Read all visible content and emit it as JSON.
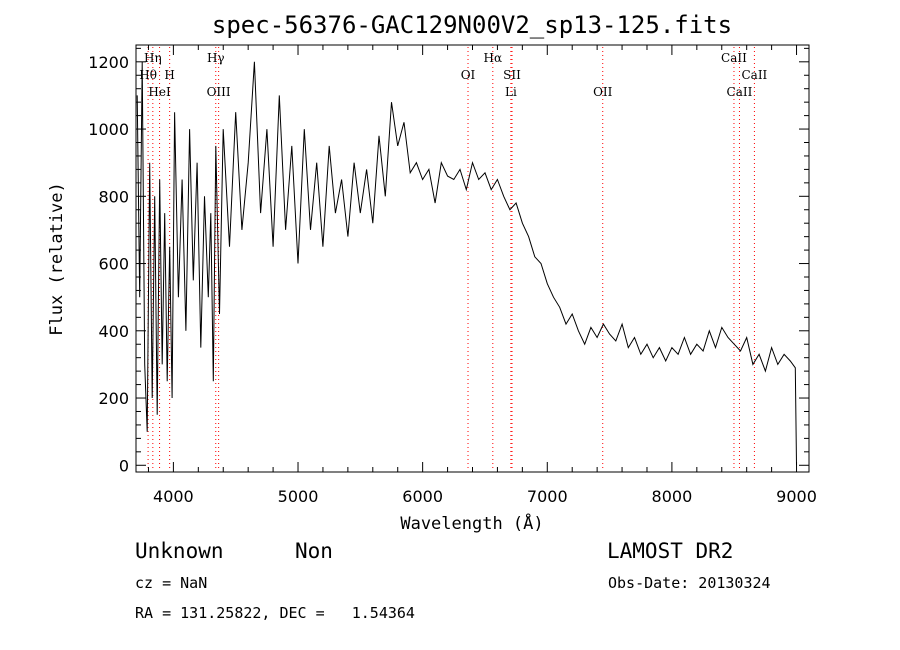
{
  "chart_data": {
    "type": "line",
    "title": "spec-56376-GAC129N00V2_sp13-125.fits",
    "xlabel": "Wavelength (Å)",
    "ylabel": "Flux (relative)",
    "xlim": [
      3700,
      9100
    ],
    "ylim": [
      -20,
      1250
    ],
    "xticks": [
      4000,
      5000,
      6000,
      7000,
      8000,
      9000
    ],
    "yticks": [
      0,
      200,
      400,
      600,
      800,
      1000,
      1200
    ],
    "grid": false,
    "line_color": "#000000",
    "marker_color": "#ff0000",
    "series": [
      {
        "x": [
          3710,
          3730,
          3750,
          3770,
          3790,
          3810,
          3830,
          3850,
          3870,
          3890,
          3910,
          3930,
          3950,
          3970,
          3990,
          4010,
          4040,
          4070,
          4100,
          4130,
          4160,
          4190,
          4220,
          4250,
          4280,
          4300,
          4320,
          4340,
          4370,
          4400,
          4450,
          4500,
          4550,
          4600,
          4650,
          4700,
          4750,
          4800,
          4850,
          4900,
          4950,
          5000,
          5050,
          5100,
          5150,
          5200,
          5250,
          5300,
          5350,
          5400,
          5450,
          5500,
          5550,
          5600,
          5650,
          5700,
          5750,
          5800,
          5850,
          5900,
          5950,
          6000,
          6050,
          6100,
          6150,
          6200,
          6250,
          6300,
          6350,
          6400,
          6450,
          6500,
          6550,
          6600,
          6650,
          6700,
          6750,
          6800,
          6850,
          6900,
          6950,
          7000,
          7050,
          7100,
          7150,
          7200,
          7250,
          7300,
          7350,
          7400,
          7450,
          7500,
          7550,
          7600,
          7650,
          7700,
          7750,
          7800,
          7850,
          7900,
          7950,
          8000,
          8050,
          8100,
          8150,
          8200,
          8250,
          8300,
          8350,
          8400,
          8450,
          8500,
          8550,
          8600,
          8650,
          8700,
          8750,
          8800,
          8850,
          8900,
          8950,
          8990,
          9000
        ],
        "y": [
          1100,
          500,
          1200,
          300,
          100,
          900,
          200,
          800,
          150,
          850,
          300,
          750,
          250,
          650,
          200,
          1050,
          500,
          850,
          400,
          1000,
          550,
          900,
          350,
          800,
          500,
          750,
          250,
          950,
          450,
          1000,
          650,
          1050,
          700,
          900,
          1200,
          750,
          1000,
          650,
          1100,
          700,
          950,
          600,
          1000,
          700,
          900,
          650,
          950,
          750,
          850,
          680,
          900,
          750,
          880,
          720,
          980,
          800,
          1080,
          950,
          1020,
          870,
          900,
          850,
          880,
          780,
          900,
          860,
          850,
          880,
          820,
          900,
          850,
          870,
          820,
          850,
          800,
          760,
          780,
          720,
          680,
          620,
          600,
          540,
          500,
          470,
          420,
          450,
          400,
          360,
          410,
          380,
          420,
          390,
          370,
          420,
          350,
          380,
          330,
          360,
          320,
          350,
          310,
          350,
          330,
          380,
          330,
          360,
          340,
          400,
          350,
          410,
          380,
          360,
          340,
          380,
          300,
          330,
          280,
          350,
          300,
          330,
          310,
          290,
          0
        ]
      }
    ],
    "reference_lines": [
      {
        "x": 3797,
        "label": "Hθ"
      },
      {
        "x": 3835,
        "label": "Hη"
      },
      {
        "x": 3889,
        "label": "HeI"
      },
      {
        "x": 3970,
        "label": "H"
      },
      {
        "x": 4340,
        "label": "Hγ"
      },
      {
        "x": 4363,
        "label": "OIII"
      },
      {
        "x": 6364,
        "label": "OI"
      },
      {
        "x": 6563,
        "label": "Hα"
      },
      {
        "x": 6708,
        "label": "Li"
      },
      {
        "x": 6717,
        "label": "SII"
      },
      {
        "x": 7445,
        "label": "OII"
      },
      {
        "x": 8498,
        "label": "CaII"
      },
      {
        "x": 8542,
        "label": "CaII"
      },
      {
        "x": 8662,
        "label": "CaII"
      }
    ]
  },
  "info": {
    "class_label": "Unknown",
    "subclass_label": "Non",
    "survey": "LAMOST DR2",
    "cz": "cz = NaN",
    "obs_date": "Obs-Date: 20130324",
    "radec": "RA = 131.25822, DEC =   1.54364"
  }
}
